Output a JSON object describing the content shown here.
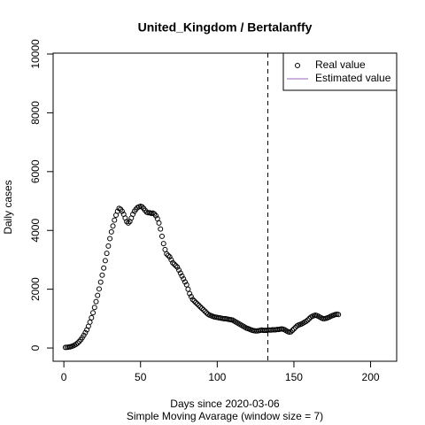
{
  "chart_data": {
    "type": "scatter",
    "title": "United_Kingdom / Bertalanffy",
    "xlabel": "Days since 2020-03-06",
    "subtitle": "Simple Moving Avarage (window size = 7)",
    "ylabel": "Daily cases",
    "xlim": [
      -7,
      217
    ],
    "ylim": [
      -450,
      10030
    ],
    "xticks": [
      0,
      50,
      100,
      150,
      200
    ],
    "yticks": [
      0,
      2000,
      4000,
      6000,
      8000,
      10000
    ],
    "vline": 133,
    "legend_position": "topright",
    "series": [
      {
        "name": "Real value",
        "color": "#000000",
        "x": [
          1,
          2,
          3,
          4,
          5,
          6,
          7,
          8,
          9,
          10,
          11,
          12,
          13,
          14,
          15,
          16,
          17,
          18,
          19,
          20,
          21,
          22,
          23,
          24,
          25,
          26,
          27,
          28,
          29,
          30,
          31,
          32,
          33,
          34,
          35,
          36,
          37,
          38,
          39,
          40,
          41,
          42,
          43,
          44,
          45,
          46,
          47,
          48,
          49,
          50,
          51,
          52,
          53,
          54,
          55,
          56,
          57,
          58,
          59,
          60,
          61,
          62,
          63,
          64,
          65,
          66,
          67,
          68,
          69,
          70,
          71,
          72,
          73,
          74,
          75,
          76,
          77,
          78,
          79,
          80,
          81,
          82,
          83,
          84,
          85,
          86,
          87,
          88,
          89,
          90,
          91,
          92,
          93,
          94,
          95,
          96,
          97,
          98,
          99,
          100,
          101,
          102,
          103,
          104,
          105,
          106,
          107,
          108,
          109,
          110,
          111,
          112,
          113,
          114,
          115,
          116,
          117,
          118,
          119,
          120,
          121,
          122,
          123,
          124,
          125,
          126,
          127,
          128,
          129,
          130,
          131,
          132,
          133,
          134,
          135,
          136,
          137,
          138,
          139,
          140,
          141,
          142,
          143,
          144,
          145,
          146,
          147,
          148,
          149,
          150,
          151,
          152,
          153,
          154,
          155,
          156,
          157,
          158,
          159,
          160,
          161,
          162,
          163,
          164,
          165,
          166,
          167,
          168,
          169,
          170,
          171,
          172,
          173,
          174,
          175,
          176,
          177,
          178,
          179
        ],
        "values": [
          20,
          25,
          30,
          40,
          55,
          75,
          100,
          130,
          170,
          220,
          280,
          350,
          430,
          520,
          620,
          740,
          880,
          1030,
          1200,
          1380,
          1580,
          1790,
          2010,
          2240,
          2480,
          2720,
          2970,
          3220,
          3470,
          3720,
          3950,
          4150,
          4350,
          4520,
          4650,
          4750,
          4720,
          4650,
          4550,
          4420,
          4300,
          4250,
          4300,
          4420,
          4550,
          4650,
          4720,
          4780,
          4800,
          4820,
          4800,
          4750,
          4680,
          4620,
          4600,
          4600,
          4580,
          4590,
          4560,
          4500,
          4400,
          4250,
          4050,
          3800,
          3550,
          3350,
          3200,
          3150,
          3100,
          3000,
          2900,
          2850,
          2800,
          2750,
          2650,
          2550,
          2450,
          2350,
          2250,
          2150,
          2000,
          1850,
          1750,
          1650,
          1600,
          1550,
          1500,
          1450,
          1400,
          1350,
          1300,
          1250,
          1200,
          1150,
          1120,
          1100,
          1080,
          1060,
          1050,
          1040,
          1030,
          1020,
          1010,
          1000,
          1000,
          990,
          980,
          970,
          960,
          950,
          920,
          890,
          860,
          830,
          800,
          770,
          740,
          710,
          680,
          660,
          640,
          620,
          600,
          590,
          580,
          580,
          590,
          600,
          610,
          600,
          600,
          600,
          610,
          610,
          610,
          620,
          620,
          620,
          630,
          630,
          640,
          650,
          640,
          620,
          590,
          560,
          540,
          550,
          600,
          650,
          700,
          750,
          780,
          800,
          820,
          850,
          880,
          910,
          950,
          1000,
          1050,
          1080,
          1100,
          1120,
          1100,
          1080,
          1050,
          1020,
          1000,
          1000,
          1010,
          1030,
          1050,
          1080,
          1100,
          1120,
          1140,
          1150,
          1140
        ]
      },
      {
        "name": "Estimated value",
        "color": "#9966bb",
        "x": [],
        "values": []
      }
    ]
  }
}
